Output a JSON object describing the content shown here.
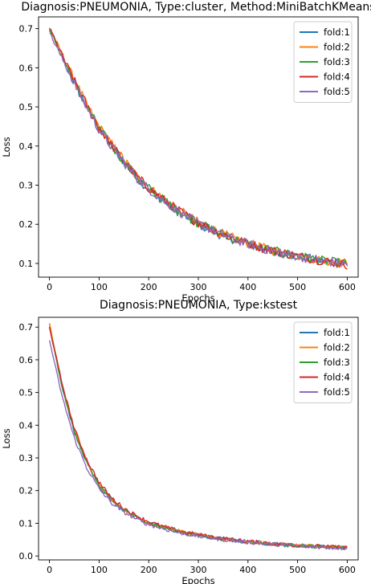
{
  "chart_data": [
    {
      "type": "line",
      "title": "Diagnosis:PNEUMONIA, Type:cluster, Method:MiniBatchKMeans",
      "xlabel": "Epochs",
      "ylabel": "Loss",
      "xlim": [
        -22,
        622
      ],
      "ylim": [
        0.065,
        0.73
      ],
      "xticks": [
        0,
        100,
        200,
        300,
        400,
        500,
        600
      ],
      "yticks": [
        0.1,
        0.2,
        0.3,
        0.4,
        0.5,
        0.6,
        0.7
      ],
      "ytick_labels": [
        "0.1",
        "0.2",
        "0.3",
        "0.4",
        "0.5",
        "0.6",
        "0.7"
      ],
      "legend_position": "top-right",
      "noise": 0.012,
      "x": [
        0,
        25,
        50,
        75,
        100,
        125,
        150,
        175,
        200,
        225,
        250,
        275,
        300,
        325,
        350,
        375,
        400,
        425,
        450,
        475,
        500,
        525,
        550,
        575,
        600
      ],
      "series": [
        {
          "name": "fold:1",
          "color": "#1f77b4",
          "values": [
            0.7,
            0.63,
            0.56,
            0.5,
            0.44,
            0.4,
            0.36,
            0.32,
            0.29,
            0.265,
            0.24,
            0.22,
            0.2,
            0.185,
            0.17,
            0.16,
            0.15,
            0.14,
            0.13,
            0.125,
            0.118,
            0.112,
            0.106,
            0.102,
            0.098
          ]
        },
        {
          "name": "fold:2",
          "color": "#ff7f0e",
          "values": [
            0.7,
            0.635,
            0.57,
            0.505,
            0.45,
            0.405,
            0.365,
            0.325,
            0.295,
            0.27,
            0.245,
            0.225,
            0.205,
            0.19,
            0.175,
            0.163,
            0.152,
            0.142,
            0.133,
            0.127,
            0.12,
            0.114,
            0.108,
            0.104,
            0.1
          ]
        },
        {
          "name": "fold:3",
          "color": "#2ca02c",
          "values": [
            0.7,
            0.63,
            0.565,
            0.5,
            0.445,
            0.4,
            0.36,
            0.322,
            0.292,
            0.267,
            0.243,
            0.222,
            0.203,
            0.188,
            0.173,
            0.161,
            0.151,
            0.141,
            0.132,
            0.126,
            0.119,
            0.113,
            0.107,
            0.103,
            0.099
          ]
        },
        {
          "name": "fold:4",
          "color": "#d62728",
          "values": [
            0.7,
            0.632,
            0.567,
            0.503,
            0.447,
            0.402,
            0.362,
            0.323,
            0.293,
            0.268,
            0.244,
            0.223,
            0.204,
            0.189,
            0.174,
            0.162,
            0.151,
            0.141,
            0.132,
            0.126,
            0.119,
            0.113,
            0.107,
            0.102,
            0.097
          ]
        },
        {
          "name": "fold:5",
          "color": "#9467bd",
          "values": [
            0.69,
            0.625,
            0.56,
            0.498,
            0.442,
            0.398,
            0.358,
            0.32,
            0.29,
            0.265,
            0.242,
            0.221,
            0.202,
            0.187,
            0.172,
            0.16,
            0.15,
            0.14,
            0.131,
            0.125,
            0.118,
            0.112,
            0.106,
            0.102,
            0.098
          ]
        }
      ]
    },
    {
      "type": "line",
      "title": "Diagnosis:PNEUMONIA, Type:kstest",
      "xlabel": "Epochs",
      "ylabel": "Loss",
      "xlim": [
        -22,
        622
      ],
      "ylim": [
        -0.012,
        0.73
      ],
      "xticks": [
        0,
        100,
        200,
        300,
        400,
        500,
        600
      ],
      "yticks": [
        0.0,
        0.1,
        0.2,
        0.3,
        0.4,
        0.5,
        0.6,
        0.7
      ],
      "ytick_labels": [
        "0.0",
        "0.1",
        "0.2",
        "0.3",
        "0.4",
        "0.5",
        "0.6",
        "0.7"
      ],
      "legend_position": "top-right",
      "noise": 0.006,
      "x": [
        0,
        25,
        50,
        75,
        100,
        125,
        150,
        175,
        200,
        225,
        250,
        275,
        300,
        325,
        350,
        375,
        400,
        425,
        450,
        475,
        500,
        525,
        550,
        575,
        600
      ],
      "series": [
        {
          "name": "fold:1",
          "color": "#1f77b4",
          "values": [
            0.71,
            0.52,
            0.38,
            0.285,
            0.215,
            0.17,
            0.14,
            0.118,
            0.1,
            0.088,
            0.078,
            0.07,
            0.063,
            0.057,
            0.052,
            0.047,
            0.043,
            0.04,
            0.037,
            0.034,
            0.032,
            0.03,
            0.028,
            0.026,
            0.025
          ]
        },
        {
          "name": "fold:2",
          "color": "#ff7f0e",
          "values": [
            0.71,
            0.525,
            0.385,
            0.29,
            0.22,
            0.174,
            0.143,
            0.12,
            0.102,
            0.09,
            0.08,
            0.071,
            0.064,
            0.058,
            0.053,
            0.048,
            0.044,
            0.041,
            0.038,
            0.035,
            0.033,
            0.031,
            0.029,
            0.027,
            0.026
          ]
        },
        {
          "name": "fold:3",
          "color": "#2ca02c",
          "values": [
            0.7,
            0.52,
            0.382,
            0.287,
            0.217,
            0.172,
            0.141,
            0.119,
            0.101,
            0.089,
            0.079,
            0.07,
            0.063,
            0.057,
            0.052,
            0.047,
            0.043,
            0.04,
            0.037,
            0.034,
            0.032,
            0.03,
            0.028,
            0.026,
            0.025
          ]
        },
        {
          "name": "fold:4",
          "color": "#d62728",
          "values": [
            0.7,
            0.53,
            0.39,
            0.295,
            0.225,
            0.178,
            0.146,
            0.123,
            0.105,
            0.092,
            0.081,
            0.072,
            0.065,
            0.059,
            0.054,
            0.049,
            0.045,
            0.041,
            0.038,
            0.035,
            0.033,
            0.031,
            0.029,
            0.027,
            0.026
          ]
        },
        {
          "name": "fold:5",
          "color": "#9467bd",
          "values": [
            0.66,
            0.49,
            0.36,
            0.27,
            0.205,
            0.162,
            0.134,
            0.113,
            0.096,
            0.085,
            0.075,
            0.067,
            0.06,
            0.055,
            0.05,
            0.046,
            0.042,
            0.039,
            0.036,
            0.033,
            0.031,
            0.029,
            0.027,
            0.025,
            0.024
          ]
        }
      ]
    }
  ]
}
